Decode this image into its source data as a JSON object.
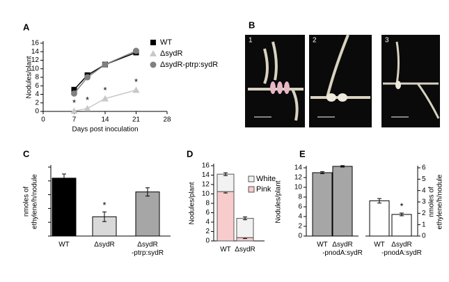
{
  "chart_data": [
    {
      "type": "line",
      "panel": "A",
      "x": [
        7,
        10,
        14,
        21
      ],
      "xlim": [
        0,
        28
      ],
      "xticks": [
        0,
        7,
        14,
        21,
        28
      ],
      "ylim": [
        0,
        16
      ],
      "yticks": [
        0,
        2,
        4,
        6,
        8,
        10,
        12,
        14,
        16
      ],
      "xlabel": "Days post inoculation",
      "ylabel": [
        "Nodules/plant"
      ],
      "legend": "upper right",
      "series": [
        {
          "name": "WT",
          "color": "#000000",
          "marker": "square",
          "values": [
            5.1,
            8.5,
            11,
            13.8
          ]
        },
        {
          "name": "ΔsydR",
          "color": "#c8c8c8",
          "marker": "triangle",
          "values": [
            0.1,
            0.7,
            3,
            5
          ],
          "significance": [
            "*",
            "*",
            "*",
            "*"
          ]
        },
        {
          "name": "ΔsydR-ptrp:sydR",
          "color": "#808080",
          "marker": "circle",
          "values": [
            4.2,
            8,
            11,
            14.2
          ]
        }
      ]
    },
    {
      "type": "bar",
      "panel": "C",
      "categories": [
        [
          "WT"
        ],
        [
          "ΔsydR"
        ],
        [
          "ΔsydR",
          "-ptrp:sydR"
        ]
      ],
      "values": [
        4.2,
        1.4,
        3.2
      ],
      "errors": [
        0.3,
        0.35,
        0.3
      ],
      "colors": [
        "#000000",
        "#d9d9d9",
        "#a6a6a6"
      ],
      "significance": [
        null,
        "*",
        null
      ],
      "ylim": [
        0,
        5
      ],
      "yticks": [
        0,
        1,
        2,
        3,
        4,
        5
      ],
      "tick_labels": false,
      "ylabel": [
        "nmoles of",
        "ethylene/h/nodule"
      ]
    },
    {
      "type": "stacked_bar",
      "panel": "D",
      "categories": [
        [
          "WT"
        ],
        [
          "ΔsydR"
        ]
      ],
      "series": [
        {
          "name": "Pink",
          "color": "#f8cccc",
          "values": [
            10.5,
            0.7
          ],
          "errors": [
            0.3,
            0.2
          ]
        },
        {
          "name": "White",
          "color": "#f2f2f2",
          "values": [
            3.7,
            4.1
          ],
          "errors": [
            0.3,
            0.3
          ]
        }
      ],
      "ylim": [
        0,
        16
      ],
      "yticks": [
        0,
        2,
        4,
        6,
        8,
        10,
        12,
        14,
        16
      ],
      "ylabel": [
        "Nodules/plant"
      ],
      "legend": "upper right"
    },
    {
      "type": "dual_bar",
      "panel": "E",
      "ylim": [
        0,
        14
      ],
      "yticks": [
        0,
        2,
        4,
        6,
        8,
        10,
        12,
        14
      ],
      "y2lim": [
        0,
        6
      ],
      "y2ticks": [
        0,
        1,
        2,
        3,
        4,
        5,
        6
      ],
      "ylabel": [
        "Nodules/plant"
      ],
      "y2label": [
        "nmoles of",
        "ethylene/h/nodule"
      ],
      "groups": [
        {
          "axis": "y",
          "categories": [
            [
              "WT"
            ],
            [
              "ΔsydR",
              "-pnodA:sydR"
            ]
          ],
          "values": [
            13,
            14.3
          ],
          "errors": [
            0.2,
            0.15
          ],
          "color": "#a6a6a6",
          "significance": [
            null,
            null
          ]
        },
        {
          "axis": "y2",
          "categories": [
            [
              "WT"
            ],
            [
              "ΔsydR",
              "-pnodA:sydR"
            ]
          ],
          "values": [
            3.1,
            1.9
          ],
          "errors": [
            0.2,
            0.12
          ],
          "color": "#ffffff",
          "significance": [
            null,
            "*"
          ]
        }
      ]
    }
  ],
  "photo_panel": {
    "panel": "B",
    "images": [
      "1",
      "2",
      "3"
    ]
  }
}
